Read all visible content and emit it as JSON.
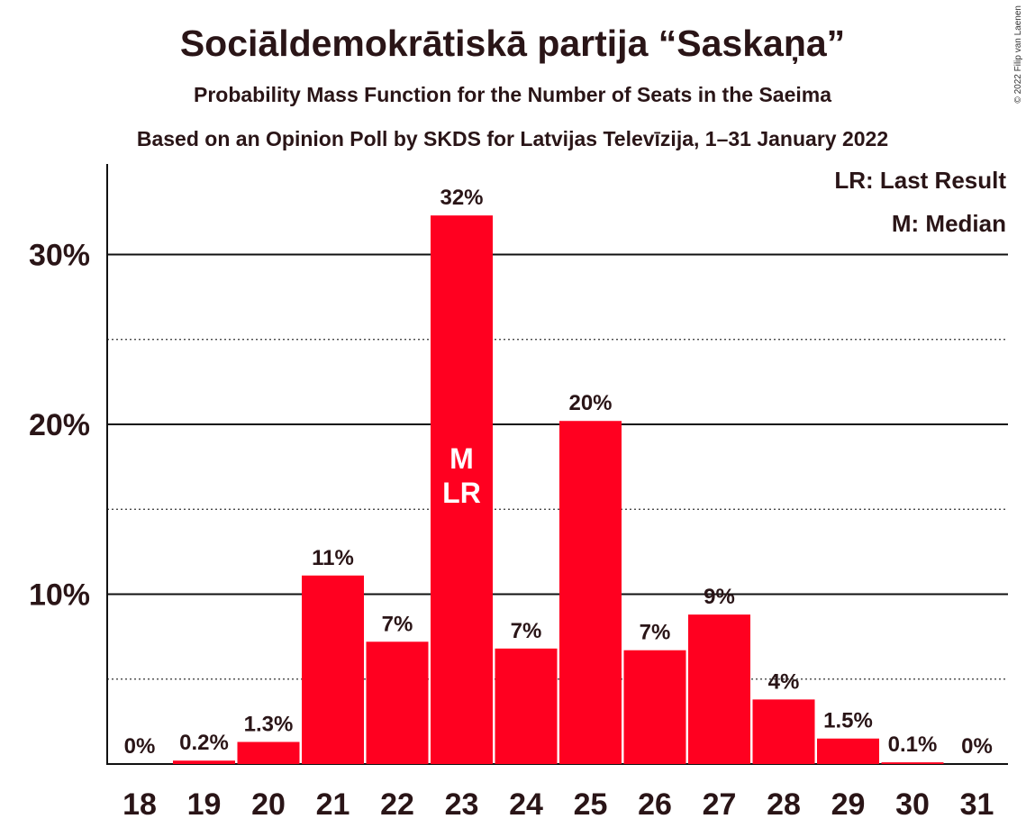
{
  "chart_data": {
    "type": "bar",
    "title": "Sociāldemokrātiskā partija “Saskaņa”",
    "subtitle": "Probability Mass Function for the Number of Seats in the Saeima",
    "subtitle2": "Based on an Opinion Poll by SKDS for Latvijas Televīzija, 1–31 January 2022",
    "copyright": "© 2022 Filip van Laenen",
    "legend": [
      "LR: Last Result",
      "M: Median"
    ],
    "legend_position": "top-right",
    "categories": [
      "18",
      "19",
      "20",
      "21",
      "22",
      "23",
      "24",
      "25",
      "26",
      "27",
      "28",
      "29",
      "30",
      "31"
    ],
    "values": [
      0,
      0.2,
      1.3,
      11.1,
      7.2,
      32.3,
      6.8,
      20.2,
      6.7,
      8.8,
      3.8,
      1.5,
      0.1,
      0
    ],
    "data_labels": [
      "0%",
      "0.2%",
      "1.3%",
      "11%",
      "7%",
      "32%",
      "7%",
      "20%",
      "7%",
      "9%",
      "4%",
      "1.5%",
      "0.1%",
      "0%"
    ],
    "bar_annotations": [
      {
        "category": "23",
        "lines": [
          "M",
          "LR"
        ]
      }
    ],
    "y_ticks": [
      10,
      20,
      30
    ],
    "y_tick_labels": [
      "10%",
      "20%",
      "30%"
    ],
    "y_minor_ticks": [
      5,
      15,
      25
    ],
    "ylim": [
      0,
      35
    ],
    "grid": true,
    "bar_color": "#ff0020",
    "xlabel": "",
    "ylabel": ""
  }
}
